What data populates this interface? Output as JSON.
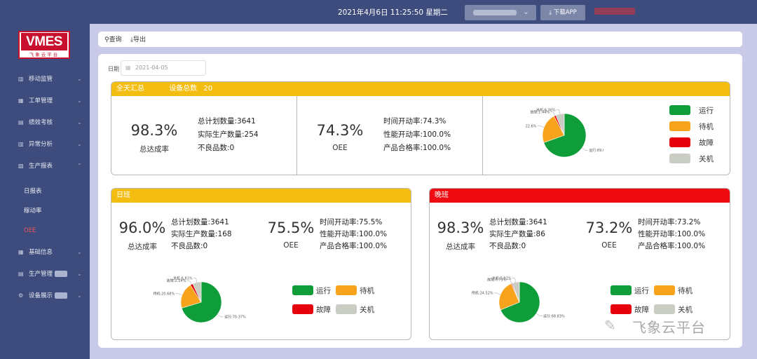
{
  "header": {
    "datetime": "2021年4月6日 11:25:50 星期二",
    "download_label": "下载APP"
  },
  "logo": {
    "brand": "VMES",
    "subtitle": "飞象云平台"
  },
  "sidebar": {
    "items": [
      {
        "label": "移动监管"
      },
      {
        "label": "工单管理"
      },
      {
        "label": "绩效考核"
      },
      {
        "label": "异常分析"
      },
      {
        "label": "生产报表"
      },
      {
        "label": "基础信息"
      },
      {
        "label": "生产管理"
      },
      {
        "label": "设备展示"
      }
    ],
    "sub_items": [
      {
        "label": "日报表"
      },
      {
        "label": "稼动率"
      },
      {
        "label": "OEE"
      }
    ],
    "active_color": "#f0525a"
  },
  "toolbar": {
    "query_label": "查询",
    "export_label": "导出"
  },
  "filter": {
    "date_label": "日期",
    "date_value": "2021-04-05"
  },
  "summary": {
    "title": "全天汇总",
    "device_count_label": "设备总数",
    "device_count": "20",
    "completion_rate": "98.3%",
    "completion_label": "总达成率",
    "planned": "总计划数量:3641",
    "actual": "实际生产数量:254",
    "defects": "不良品数:0",
    "oee": "74.3%",
    "oee_label": "OEE",
    "time_rate": "时间开动率:74.3%",
    "perf_rate": "性能开动率:100.0%",
    "quality_rate": "产品合格率:100.0%",
    "legend": [
      "运行",
      "待机",
      "故障",
      "关机"
    ],
    "pie": {
      "labels": [
        "运行:69.6%",
        "待机:22.6%",
        "故障:1.44%",
        "关机:6.36%"
      ],
      "values": [
        69.6,
        22.6,
        1.44,
        6.36
      ]
    }
  },
  "day_shift": {
    "title": "日班",
    "completion_rate": "96.0%",
    "completion_label": "总达成率",
    "planned": "总计划数量:3641",
    "actual": "实际生产数量:168",
    "defects": "不良品数:0",
    "oee": "75.5%",
    "oee_label": "OEE",
    "time_rate": "时间开动率:75.5%",
    "perf_rate": "性能开动率:100.0%",
    "quality_rate": "产品合格率:100.0%",
    "legend": [
      "运行",
      "待机",
      "故障",
      "关机"
    ],
    "pie": {
      "labels": [
        "运行:70.37%",
        "待机:20.68%",
        "故障:2.14%",
        "关机:6.81%"
      ],
      "values": [
        70.37,
        20.68,
        2.14,
        6.81
      ]
    }
  },
  "night_shift": {
    "title": "晚班",
    "completion_rate": "98.3%",
    "completion_label": "总达成率",
    "planned": "总计划数量:3641",
    "actual": "实际生产数量:86",
    "defects": "不良品数:0",
    "oee": "73.2%",
    "oee_label": "OEE",
    "time_rate": "时间开动率:73.2%",
    "perf_rate": "性能开动率:100.0%",
    "quality_rate": "产品合格率:100.0%",
    "legend": [
      "运行",
      "待机",
      "故障",
      "关机"
    ],
    "pie": {
      "labels": [
        "运行:68.83%",
        "待机:24.52%",
        "故障:0.73%",
        "关机:5.92%"
      ],
      "values": [
        68.83,
        24.52,
        0.73,
        5.92
      ]
    }
  },
  "colors": {
    "running": "#0f9d3a",
    "standby": "#f7a31c",
    "fault": "#e5000b",
    "off": "#c9cdc4",
    "header_yellow": "#f4bd12",
    "header_red": "#ee0b12"
  },
  "watermark": {
    "text": "飞象云平台"
  }
}
